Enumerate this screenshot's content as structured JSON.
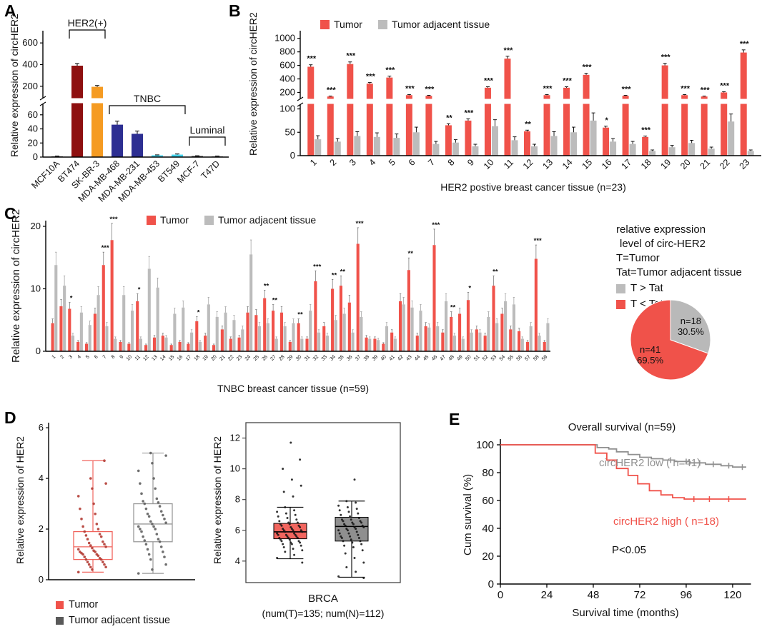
{
  "panels": {
    "A": {
      "label": "A"
    },
    "B": {
      "label": "B"
    },
    "C": {
      "label": "C"
    },
    "D": {
      "label": "D"
    },
    "E": {
      "label": "E"
    }
  },
  "colors": {
    "tumor_red": "#f0524a",
    "adjacent_gray": "#bcbcbc",
    "km_gray": "#909090",
    "km_red": "#f0524a"
  },
  "chart_data": [
    {
      "id": "A",
      "type": "bar",
      "ylabel": "Relative expression of circHER2",
      "categories": [
        "MCF10A",
        "BT474",
        "SK-BR-3",
        "MDA-MB-468",
        "MDA-MB-231",
        "MDA-MB-453",
        "BT549",
        "MCF-7",
        "T47D"
      ],
      "values": [
        1.2,
        390,
        195,
        46,
        33,
        2.5,
        3.5,
        1.5,
        1.2
      ],
      "errors": [
        0.3,
        20,
        12,
        5,
        4,
        0.6,
        0.9,
        0.4,
        0.3
      ],
      "bar_colors": [
        "#777777",
        "#8e1010",
        "#f59b22",
        "#2d2f92",
        "#2d2f92",
        "#45d6ef",
        "#45d6ef",
        "#444444",
        "#999999"
      ],
      "y_axis": {
        "lower_ticks": [
          0,
          20,
          40,
          60
        ],
        "upper_ticks": [
          200,
          400,
          600
        ],
        "break": true
      },
      "groups": [
        {
          "label": "HER2(+)",
          "from": 1,
          "to": 2
        },
        {
          "label": "TNBC",
          "from": 3,
          "to": 6
        },
        {
          "label": "Luminal",
          "from": 7,
          "to": 8
        }
      ]
    },
    {
      "id": "B",
      "type": "bar",
      "ylabel": "Relative expression of circHER2",
      "xlabel": "HER2 postive breast cancer tissue (n=23)",
      "series": [
        {
          "name": "Tumor",
          "color": "#f0524a"
        },
        {
          "name": "Tumor adjacent tissue",
          "color": "#bcbcbc"
        }
      ],
      "categories": [
        "1",
        "2",
        "3",
        "4",
        "5",
        "6",
        "7",
        "8",
        "9",
        "10",
        "11",
        "12",
        "13",
        "14",
        "15",
        "16",
        "17",
        "18",
        "19",
        "20",
        "21",
        "22",
        "23"
      ],
      "tumor": [
        580,
        140,
        620,
        330,
        420,
        160,
        150,
        65,
        75,
        270,
        700,
        52,
        160,
        270,
        460,
        60,
        150,
        40,
        600,
        160,
        140,
        200,
        790
      ],
      "adjacent": [
        35,
        30,
        42,
        40,
        38,
        50,
        25,
        28,
        20,
        63,
        33,
        20,
        42,
        50,
        75,
        30,
        25,
        10,
        18,
        27,
        15,
        73,
        10
      ],
      "stars": [
        "***",
        "***",
        "***",
        "***",
        "***",
        "***",
        "***",
        "**",
        "***",
        "***",
        "***",
        "**",
        "***",
        "***",
        "***",
        "*",
        "***",
        "***",
        "***",
        "***",
        "***",
        "***",
        "***"
      ],
      "error_fraction_tumor": 0.05,
      "error_fraction_adjacent": 0.22,
      "y_axis": {
        "lower_ticks": [
          0,
          50,
          100
        ],
        "upper_ticks": [
          200,
          400,
          600,
          800,
          1000
        ],
        "break": true
      }
    },
    {
      "id": "C",
      "type": "bar",
      "ylabel": "Relative expression of circHER2",
      "xlabel": "TNBC breast cancer tissue (n=59)",
      "series": [
        {
          "name": "Tumor",
          "color": "#f0524a"
        },
        {
          "name": "Tumor adjacent tissue",
          "color": "#bcbcbc"
        }
      ],
      "categories": [
        "1",
        "2",
        "3",
        "4",
        "5",
        "6",
        "7",
        "8",
        "9",
        "10",
        "11",
        "12",
        "13",
        "14",
        "15",
        "16",
        "17",
        "18",
        "19",
        "20",
        "21",
        "22",
        "23",
        "24",
        "25",
        "26",
        "27",
        "28",
        "29",
        "30",
        "31",
        "32",
        "33",
        "34",
        "35",
        "36",
        "37",
        "38",
        "39",
        "40",
        "41",
        "42",
        "43",
        "44",
        "45",
        "46",
        "47",
        "48",
        "49",
        "50",
        "51",
        "52",
        "53",
        "54",
        "55",
        "56",
        "57",
        "58",
        "59"
      ],
      "tumor": [
        4.5,
        7.2,
        6.8,
        1.5,
        1.2,
        6.0,
        13.8,
        17.8,
        1.5,
        1.2,
        8.0,
        1.0,
        2.2,
        2.5,
        1.0,
        1.5,
        1.2,
        4.8,
        2.5,
        1.0,
        3.5,
        2.0,
        2.2,
        6.2,
        5.8,
        8.5,
        6.5,
        6.2,
        1.5,
        4.5,
        2.0,
        11.2,
        4.0,
        10.0,
        10.5,
        7.8,
        17.2,
        2.2,
        2.0,
        1.2,
        3.0,
        8.0,
        13.0,
        2.5,
        4.0,
        17.0,
        3.0,
        5.5,
        6.0,
        8.2,
        3.5,
        2.5,
        10.5,
        6.0,
        3.5,
        3.2,
        1.5,
        14.8,
        1.5
      ],
      "adjacent": [
        13.8,
        10.5,
        2.5,
        6.2,
        4.2,
        9.0,
        4.0,
        2.0,
        9.0,
        6.5,
        2.0,
        13.2,
        10.2,
        2.2,
        6.0,
        7.0,
        3.0,
        1.5,
        7.5,
        5.5,
        6.2,
        5.0,
        3.5,
        15.5,
        4.0,
        4.5,
        2.0,
        4.0,
        4.5,
        2.0,
        6.5,
        3.0,
        2.5,
        5.0,
        6.0,
        3.0,
        5.5,
        2.0,
        1.8,
        4.0,
        2.0,
        7.5,
        7.0,
        6.5,
        3.8,
        4.0,
        8.0,
        2.5,
        2.0,
        3.0,
        3.0,
        5.5,
        4.5,
        8.0,
        7.5,
        2.0,
        4.0,
        2.5,
        4.5
      ],
      "stars": [
        "",
        "",
        "*",
        "",
        "",
        "",
        "***",
        "***",
        "",
        "",
        "*",
        "",
        "",
        "",
        "",
        "",
        "",
        "*",
        "",
        "",
        "",
        "",
        "",
        "",
        "",
        "**",
        "**",
        "",
        "",
        "**",
        "",
        "***",
        "",
        "**",
        "**",
        "",
        "***",
        "",
        "",
        "",
        "",
        "",
        "**",
        "",
        "",
        "***",
        "",
        "**",
        "",
        "*",
        "",
        "",
        "**",
        "",
        "",
        "",
        "",
        "***",
        ""
      ],
      "error_fraction": 0.15,
      "y_axis": {
        "ticks": [
          0,
          10,
          20
        ],
        "max": 20
      },
      "side_legend": {
        "lines": [
          "relative expression",
          "level of circ-HER2",
          "T=Tumor",
          "Tat=Tumor adjacent tissue"
        ],
        "items": [
          {
            "color": "#bcbcbc",
            "label": "T > Tat"
          },
          {
            "color": "#f0524a",
            "label": "T < Tat"
          }
        ]
      }
    },
    {
      "id": "C-pie",
      "type": "pie",
      "slices": [
        {
          "label": "n=18",
          "pct_label": "30.5%",
          "value": 30.5,
          "color": "#b9b9b9"
        },
        {
          "label": "n=41",
          "pct_label": "69.5%",
          "value": 69.5,
          "color": "#f0524a"
        }
      ]
    },
    {
      "id": "D-left",
      "type": "box",
      "ylabel": "Relative expression of HER2",
      "y_ticks": [
        0,
        2,
        4,
        6
      ],
      "groups": [
        {
          "name": "Tumor",
          "color": "#f0524a",
          "box_color": "#f0635c",
          "point_color": "#b23b33",
          "stats": {
            "min": 0.3,
            "q1": 0.8,
            "median": 1.3,
            "q3": 1.9,
            "max": 4.7
          },
          "points": [
            0.3,
            0.4,
            0.5,
            0.5,
            0.6,
            0.6,
            0.7,
            0.7,
            0.8,
            0.8,
            0.85,
            0.9,
            0.95,
            1.0,
            1.0,
            1.05,
            1.1,
            1.1,
            1.15,
            1.2,
            1.25,
            1.3,
            1.35,
            1.4,
            1.45,
            1.5,
            1.6,
            1.7,
            1.75,
            1.8,
            1.9,
            2.0,
            2.1,
            2.2,
            2.4,
            2.6,
            2.8,
            3.0,
            3.3,
            3.6,
            3.8,
            4.0,
            4.7
          ]
        },
        {
          "name": "Tumor adjacent tissue",
          "color": "#595959",
          "box_color": "#9a9a9a",
          "point_color": "#5f5f5f",
          "stats": {
            "min": 0.25,
            "q1": 1.5,
            "median": 2.2,
            "q3": 3.0,
            "max": 5.0
          },
          "points": [
            0.25,
            0.4,
            0.6,
            0.8,
            0.9,
            1.0,
            1.1,
            1.2,
            1.3,
            1.4,
            1.5,
            1.55,
            1.6,
            1.7,
            1.8,
            1.9,
            2.0,
            2.0,
            2.1,
            2.1,
            2.2,
            2.25,
            2.3,
            2.4,
            2.5,
            2.55,
            2.6,
            2.7,
            2.8,
            2.9,
            3.0,
            3.05,
            3.1,
            3.2,
            3.4,
            3.6,
            3.8,
            4.0,
            4.3,
            4.6,
            4.9,
            5.0
          ]
        }
      ]
    },
    {
      "id": "D-right",
      "type": "box",
      "ylabel": "Relative expression of HER2",
      "xlabel_line1": "BRCA",
      "xlabel_line2": "(num(T)=135; num(N)=112)",
      "y_ticks": [
        4,
        6,
        8,
        10,
        12
      ],
      "groups": [
        {
          "name": "T",
          "fill": "#f2655e",
          "stats": {
            "min": 4.15,
            "q1": 5.45,
            "median": 5.9,
            "q3": 6.45,
            "max": 7.5
          },
          "points": [
            4.2,
            4.4,
            4.6,
            4.7,
            4.8,
            4.9,
            5.0,
            5.1,
            5.1,
            5.2,
            5.2,
            5.3,
            5.3,
            5.4,
            5.4,
            5.5,
            5.5,
            5.5,
            5.6,
            5.6,
            5.7,
            5.7,
            5.7,
            5.8,
            5.8,
            5.9,
            5.9,
            6.0,
            6.0,
            6.0,
            6.1,
            6.1,
            6.2,
            6.2,
            6.3,
            6.3,
            6.4,
            6.4,
            6.5,
            6.5,
            6.6,
            6.7,
            6.8,
            6.9,
            7.0,
            7.1,
            7.2,
            7.3,
            7.5,
            3.9,
            8.2,
            8.5,
            8.9,
            9.3,
            10.0,
            10.6,
            11.7
          ]
        },
        {
          "name": "N",
          "fill": "#8f8f8f",
          "stats": {
            "min": 2.95,
            "q1": 5.3,
            "median": 6.25,
            "q3": 6.85,
            "max": 7.9
          },
          "points": [
            3.0,
            3.3,
            3.6,
            3.9,
            4.2,
            4.5,
            4.7,
            4.9,
            5.0,
            5.1,
            5.2,
            5.3,
            5.3,
            5.4,
            5.5,
            5.5,
            5.6,
            5.6,
            5.7,
            5.8,
            5.8,
            5.9,
            6.0,
            6.0,
            6.1,
            6.1,
            6.2,
            6.2,
            6.3,
            6.3,
            6.4,
            6.4,
            6.5,
            6.5,
            6.6,
            6.6,
            6.7,
            6.7,
            6.8,
            6.9,
            7.0,
            7.1,
            7.2,
            7.3,
            7.4,
            7.5,
            7.6,
            7.8,
            7.9,
            2.9,
            9.3
          ]
        }
      ]
    },
    {
      "id": "E",
      "type": "line",
      "title": "Overall survival (n=59)",
      "ylabel": "Cum survival (%)",
      "xlabel": "Survival time (months)",
      "x_ticks": [
        0,
        24,
        48,
        72,
        96,
        120
      ],
      "y_ticks": [
        0,
        20,
        40,
        60,
        80,
        100
      ],
      "p_value": "P<0.05",
      "series": [
        {
          "name": "circHER2 low ( n=41)",
          "color": "#909090",
          "steps": [
            [
              0,
              100
            ],
            [
              46,
              100
            ],
            [
              50,
              98
            ],
            [
              56,
              97
            ],
            [
              60,
              95
            ],
            [
              66,
              93
            ],
            [
              72,
              91
            ],
            [
              78,
              90
            ],
            [
              84,
              89
            ],
            [
              90,
              88
            ],
            [
              98,
              87
            ],
            [
              106,
              86
            ],
            [
              114,
              85
            ],
            [
              120,
              84
            ],
            [
              127,
              84
            ]
          ],
          "censors": [
            88,
            96,
            103,
            110,
            118,
            125
          ]
        },
        {
          "name": "circHER2 high ( n=18)",
          "color": "#f0524a",
          "steps": [
            [
              0,
              100
            ],
            [
              46,
              100
            ],
            [
              49,
              94
            ],
            [
              55,
              89
            ],
            [
              60,
              83
            ],
            [
              66,
              78
            ],
            [
              71,
              72
            ],
            [
              77,
              67
            ],
            [
              83,
              64
            ],
            [
              89,
              62
            ],
            [
              95,
              61
            ],
            [
              127,
              61
            ]
          ],
          "censors": [
            100,
            108,
            118
          ]
        }
      ]
    }
  ]
}
